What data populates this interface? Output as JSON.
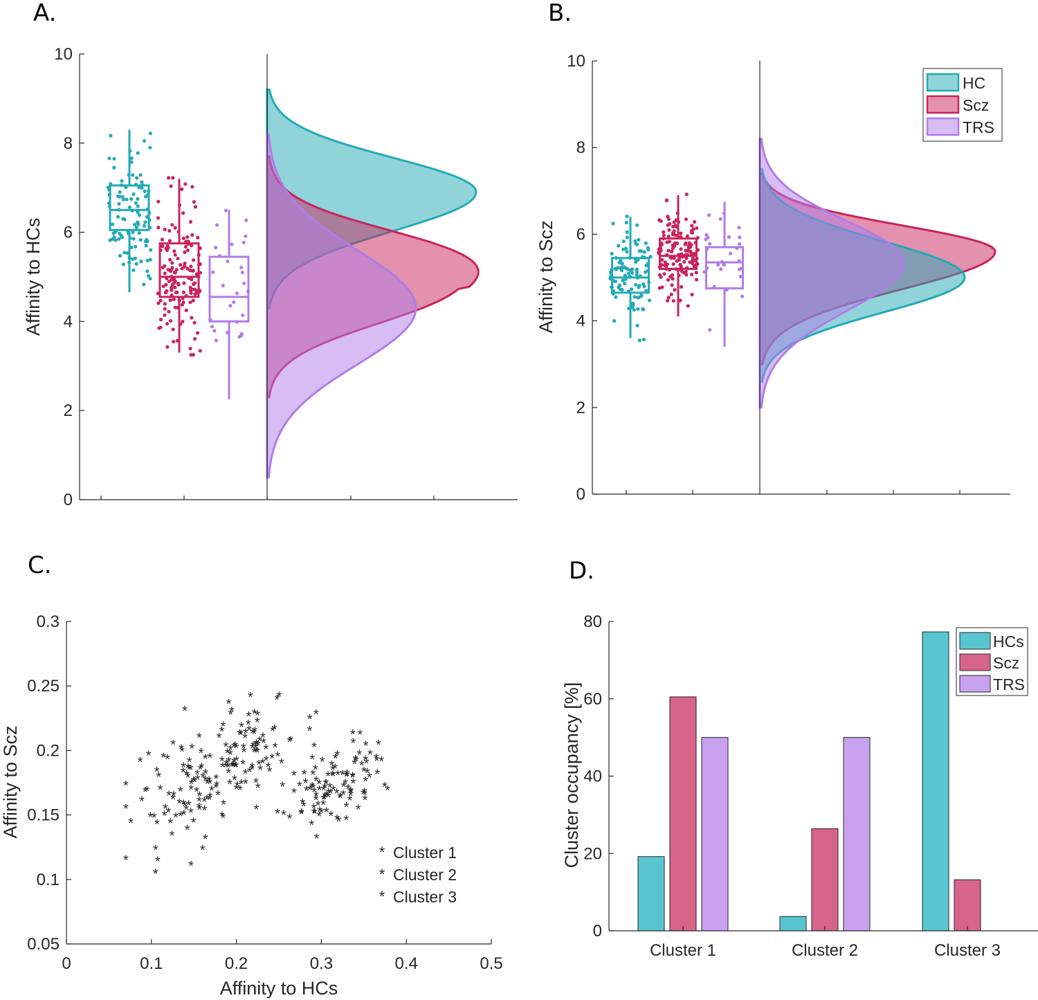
{
  "colors": {
    "HC": "#22aab6",
    "Scz": "#c8245c",
    "TRS": "#b07ce8",
    "Cluster1": "#40e0f0",
    "Cluster2": "#e050e8",
    "Cluster3": "#e6e62a",
    "barHC": "#58c5d1",
    "barScz": "#d6648b",
    "barTRS": "#c8a1ee"
  },
  "chart_data": [
    {
      "panel": "A.",
      "type": "box+density",
      "ylabel": "Affinity to HCs",
      "ylim": [
        0,
        10
      ],
      "yticks": [
        "0",
        "2",
        "4",
        "6",
        "8",
        "10"
      ],
      "groups": [
        {
          "name": "HC",
          "q1": 6.05,
          "median": 6.5,
          "q3": 7.05,
          "whisker_low": 4.65,
          "whisker_high": 8.3,
          "n_points": 110,
          "density_peak": 6.9,
          "density_range": [
            4.3,
            9.2
          ]
        },
        {
          "name": "Scz",
          "q1": 4.55,
          "median": 5.0,
          "q3": 5.75,
          "whisker_low": 3.3,
          "whisker_high": 7.2,
          "n_points": 150,
          "density_peak": 4.75,
          "density_range": [
            2.3,
            7.7
          ]
        },
        {
          "name": "TRS",
          "q1": 4.0,
          "median": 4.55,
          "q3": 5.45,
          "whisker_low": 2.25,
          "whisker_high": 6.5,
          "n_points": 28,
          "density_peak": 4.3,
          "density_range": [
            0.5,
            8.2
          ]
        }
      ]
    },
    {
      "panel": "B.",
      "type": "box+density",
      "ylabel": "Affinity to Scz",
      "ylim": [
        0,
        10
      ],
      "yticks": [
        "0",
        "2",
        "4",
        "6",
        "8",
        "10"
      ],
      "legend": [
        "HC",
        "Scz",
        "TRS"
      ],
      "groups": [
        {
          "name": "HC",
          "q1": 4.65,
          "median": 5.0,
          "q3": 5.45,
          "whisker_low": 3.6,
          "whisker_high": 6.4,
          "n_points": 110,
          "density_peak": 5.0,
          "density_range": [
            2.6,
            7.5
          ]
        },
        {
          "name": "Scz",
          "q1": 5.2,
          "median": 5.5,
          "q3": 5.9,
          "whisker_low": 4.1,
          "whisker_high": 6.9,
          "n_points": 150,
          "density_peak": 5.6,
          "density_range": [
            3.0,
            7.4
          ]
        },
        {
          "name": "TRS",
          "q1": 4.75,
          "median": 5.35,
          "q3": 5.7,
          "whisker_low": 3.4,
          "whisker_high": 6.75,
          "n_points": 28,
          "density_peak": 5.35,
          "density_range": [
            2.0,
            8.2
          ]
        }
      ]
    },
    {
      "panel": "C.",
      "type": "scatter",
      "xlabel": "Affinity to HCs",
      "ylabel": "Affinity to Scz",
      "xlim": [
        0,
        0.5
      ],
      "ylim": [
        0.05,
        0.3
      ],
      "xticks": [
        "0",
        "0.1",
        "0.2",
        "0.3",
        "0.4",
        "0.5"
      ],
      "yticks": [
        "0.05",
        "0.1",
        "0.15",
        "0.2",
        "0.25",
        "0.3"
      ],
      "legend": [
        "Cluster 1",
        "Cluster 2",
        "Cluster 3"
      ],
      "clusters": [
        {
          "name": "Cluster 1",
          "center": [
            0.2,
            0.195
          ],
          "spread": [
            0.07,
            0.032
          ],
          "count": 130
        },
        {
          "name": "Cluster 2",
          "center": [
            0.13,
            0.16
          ],
          "spread": [
            0.055,
            0.035
          ],
          "count": 55
        },
        {
          "name": "Cluster 3",
          "center": [
            0.31,
            0.172
          ],
          "spread": [
            0.055,
            0.025
          ],
          "count": 110
        }
      ]
    },
    {
      "panel": "D.",
      "type": "bar",
      "ylabel": "Cluster occupancy [%]",
      "ylim": [
        0,
        80
      ],
      "yticks": [
        "0",
        "20",
        "40",
        "60",
        "80"
      ],
      "categories": [
        "Cluster 1",
        "Cluster 2",
        "Cluster 3"
      ],
      "legend": [
        "HCs",
        "Scz",
        "TRS"
      ],
      "series": [
        {
          "name": "HCs",
          "values": [
            19.2,
            3.7,
            77.3
          ]
        },
        {
          "name": "Scz",
          "values": [
            60.5,
            26.4,
            13.2
          ]
        },
        {
          "name": "TRS",
          "values": [
            50,
            50,
            0
          ]
        }
      ]
    }
  ]
}
